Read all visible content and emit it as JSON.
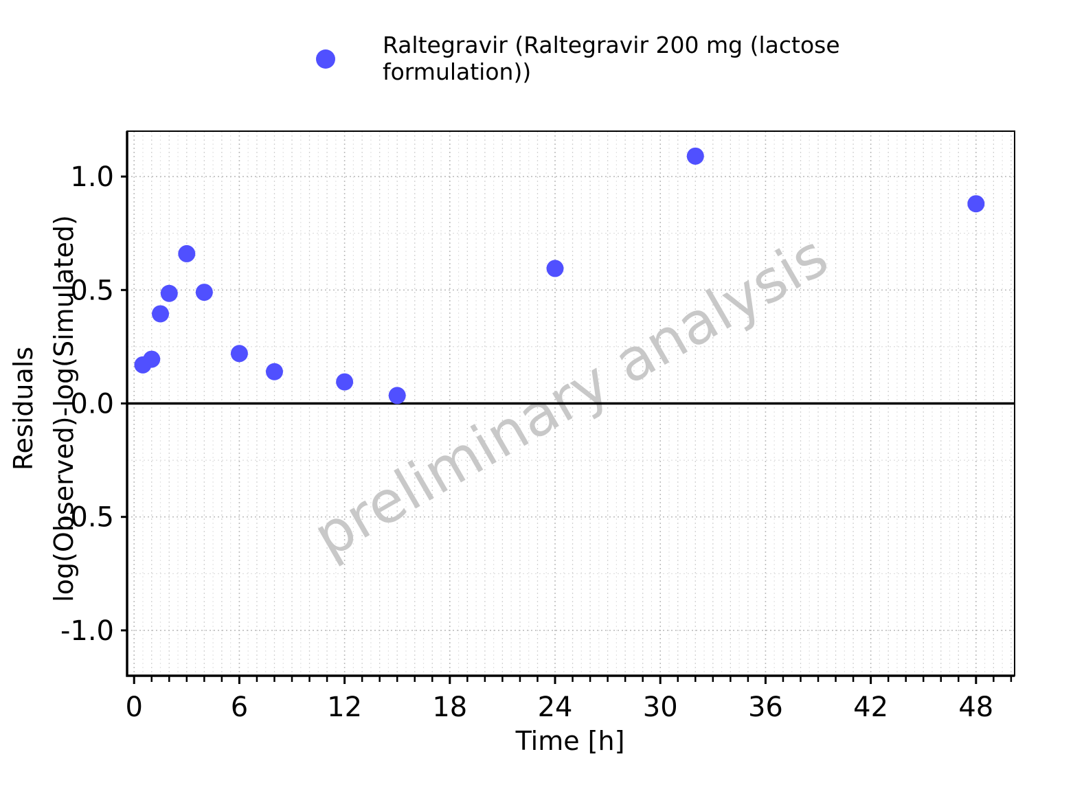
{
  "chart_data": {
    "type": "scatter",
    "title": "",
    "xlabel": "Time [h]",
    "ylabel_line1": "Residuals",
    "ylabel_line2": "log(Observed)-log(Simulated)",
    "xlim": [
      -0.4,
      50.2
    ],
    "ylim": [
      -1.2,
      1.2
    ],
    "x_ticks": [
      0,
      6,
      12,
      18,
      24,
      30,
      36,
      42,
      48
    ],
    "x_tick_labels": [
      "0",
      "6",
      "12",
      "18",
      "24",
      "30",
      "36",
      "42",
      "48"
    ],
    "y_ticks": [
      1.0,
      0.5,
      0.0,
      -0.5,
      -1.0
    ],
    "y_tick_labels": [
      "1.0",
      "0.5",
      "0.0",
      "-0.5",
      "-1.0"
    ],
    "x_minor_step": 1,
    "grid": true,
    "reference_line_y": 0,
    "legend_position": "top",
    "watermark": "preliminary analysis",
    "series": [
      {
        "name": "Raltegravir (Raltegravir 200 mg (lactose formulation))",
        "legend_lines": [
          "Raltegravir (Raltegravir 200 mg (lactose",
          "formulation))"
        ],
        "color": "#5050ff",
        "x": [
          0.5,
          1,
          1.5,
          2,
          3,
          4,
          6,
          8,
          12,
          15,
          24,
          32,
          48
        ],
        "y": [
          0.17,
          0.195,
          0.395,
          0.485,
          0.66,
          0.49,
          0.22,
          0.14,
          0.095,
          0.035,
          0.595,
          1.09,
          0.88
        ]
      }
    ]
  }
}
